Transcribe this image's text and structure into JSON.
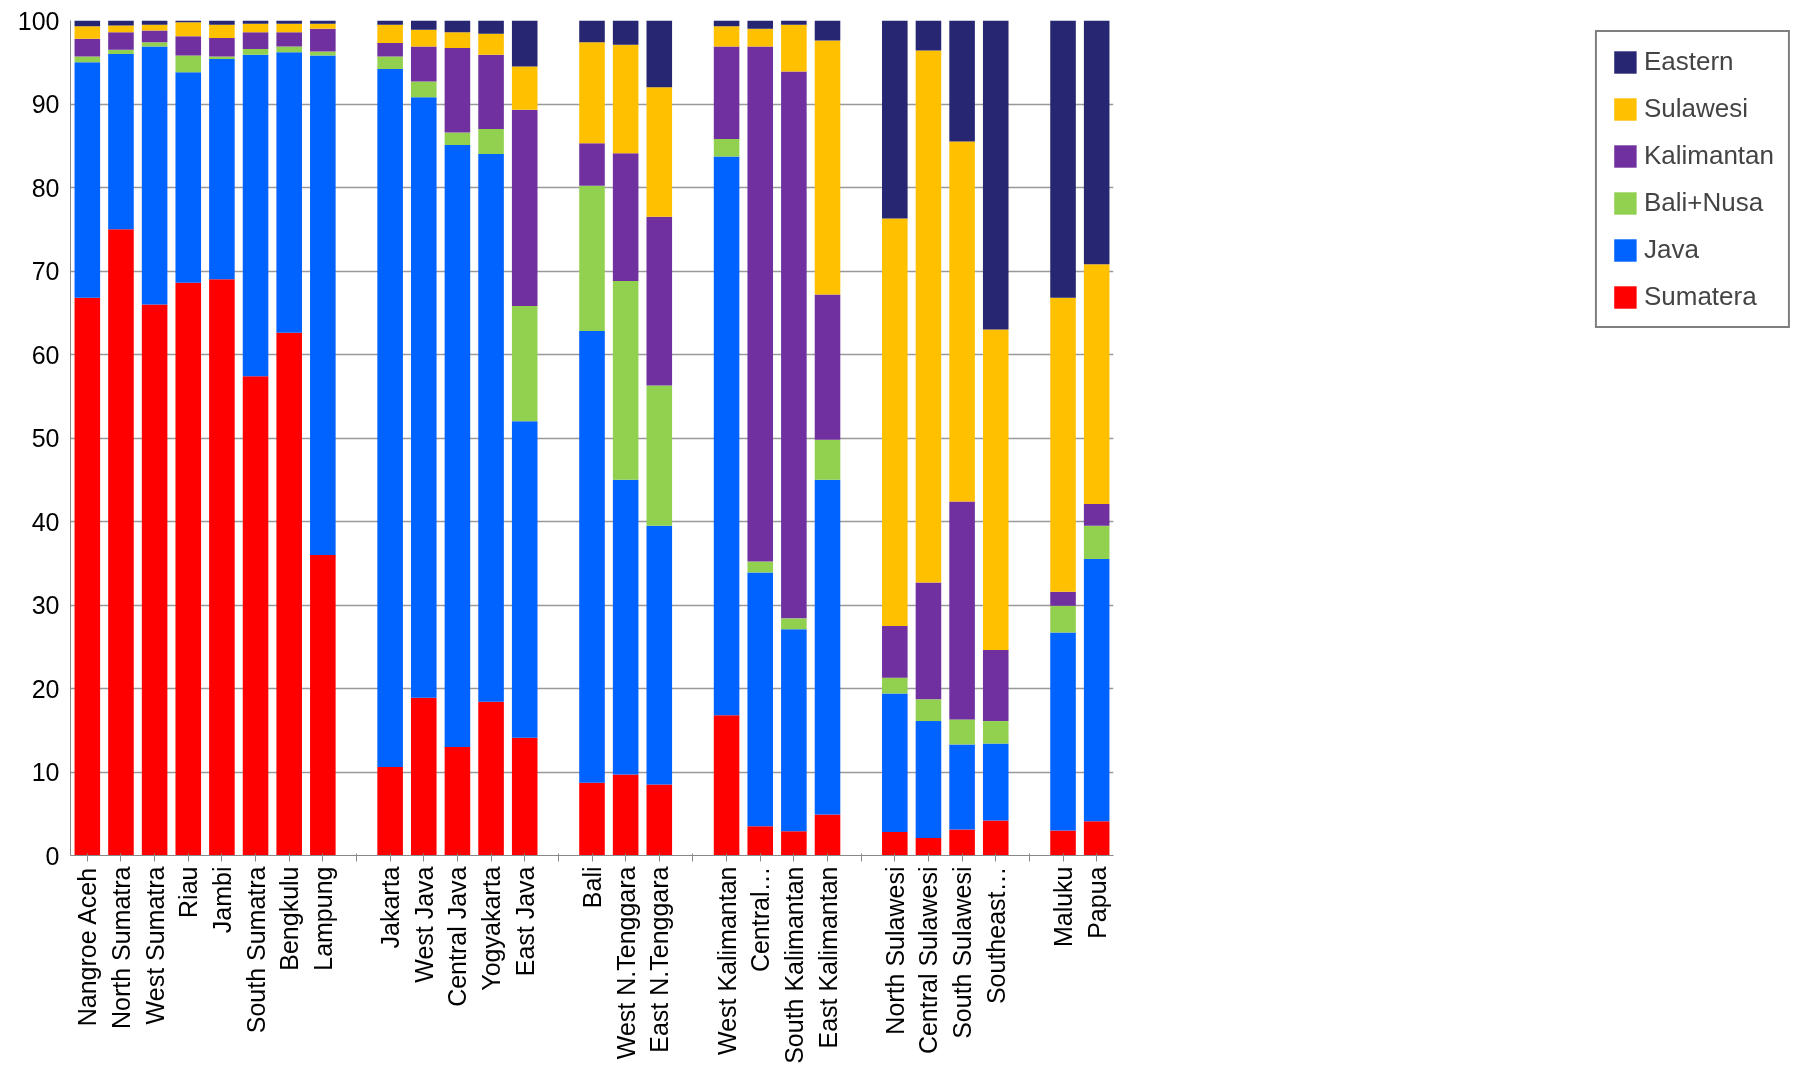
{
  "chart_data": {
    "type": "bar",
    "stacked": true,
    "categories": [
      "Nangroe Aceh",
      "North Sumatra",
      "West Sumatra",
      "Riau",
      "Jambi",
      "South Sumatra",
      "Bengkulu",
      "Lampung",
      null,
      "Jakarta",
      "West Java",
      "Central Java",
      "Yogyakarta",
      "East Java",
      null,
      "Bali",
      "West N.Tenggara",
      "East N.Tenggara",
      null,
      "West Kalimantan",
      "Central…",
      "South Kalimantan",
      "East Kalimantan",
      null,
      "North Sulawesi",
      "Central Sulawesi",
      "South Sulawesi",
      "Southeast…",
      null,
      "Maluku",
      "Papua"
    ],
    "series": [
      {
        "name": "Sumatera",
        "color": "#ff0000",
        "values": [
          66.8,
          75,
          66,
          68.6,
          69,
          57.4,
          62.6,
          36,
          null,
          10.6,
          18.9,
          13.0,
          18.4,
          14.1,
          null,
          8.7,
          9.7,
          8.5,
          null,
          16.8,
          3.5,
          2.9,
          4.9,
          null,
          2.8,
          2.1,
          3.1,
          4.2,
          null,
          3.0,
          4.1
        ]
      },
      {
        "name": "Java",
        "color": "#0062ff",
        "values": [
          28.2,
          21,
          30.9,
          25.2,
          26.4,
          38.5,
          33.6,
          59.8,
          null,
          83.6,
          71.9,
          72.1,
          65.6,
          37.9,
          null,
          54.1,
          35.3,
          31.0,
          null,
          66.9,
          30.4,
          24.2,
          40.1,
          null,
          16.6,
          14.0,
          10.2,
          9.2,
          null,
          23.7,
          31.4
        ]
      },
      {
        "name": "Bali+Nusa",
        "color": "#92d050",
        "values": [
          0.7,
          0.5,
          0.5,
          2.0,
          0.3,
          0.7,
          0.7,
          0.5,
          null,
          1.5,
          1.9,
          1.5,
          3.0,
          13.8,
          null,
          17.4,
          23.8,
          16.8,
          null,
          2.1,
          1.3,
          1.3,
          4.8,
          null,
          1.9,
          2.6,
          3.0,
          2.7,
          null,
          3.2,
          4.0
        ]
      },
      {
        "name": "Kalimantan",
        "color": "#7030a0",
        "values": [
          2.1,
          2.1,
          1.4,
          2.3,
          2.2,
          2.0,
          1.7,
          2.7,
          null,
          1.6,
          4.2,
          10.1,
          8.9,
          23.5,
          null,
          5.1,
          15.3,
          20.2,
          null,
          11.1,
          61.7,
          65.5,
          17.4,
          null,
          6.2,
          14.0,
          26.1,
          8.5,
          null,
          1.7,
          2.6
        ]
      },
      {
        "name": "Sulawesi",
        "color": "#ffc000",
        "values": [
          1.5,
          0.8,
          0.7,
          1.7,
          1.6,
          1.0,
          1.0,
          0.6,
          null,
          2.2,
          2.0,
          1.9,
          2.5,
          5.2,
          null,
          12.1,
          13.0,
          15.5,
          null,
          2.4,
          2.1,
          5.6,
          30.4,
          null,
          48.8,
          63.7,
          43.1,
          38.4,
          null,
          35.2,
          28.7
        ]
      },
      {
        "name": "Eastern",
        "color": "#262673",
        "values": [
          0.7,
          0.6,
          0.5,
          0.2,
          0.5,
          0.4,
          0.4,
          0.4,
          null,
          0.5,
          1.1,
          1.4,
          1.6,
          5.5,
          null,
          2.6,
          2.9,
          8.0,
          null,
          0.7,
          1.0,
          0.5,
          2.4,
          null,
          23.7,
          3.6,
          14.5,
          37.0,
          null,
          33.2,
          29.2
        ]
      }
    ],
    "ylim": [
      0,
      100
    ],
    "yticks": [
      0,
      10,
      20,
      30,
      40,
      50,
      60,
      70,
      80,
      90,
      100
    ],
    "grid": "y",
    "legend": "right"
  }
}
